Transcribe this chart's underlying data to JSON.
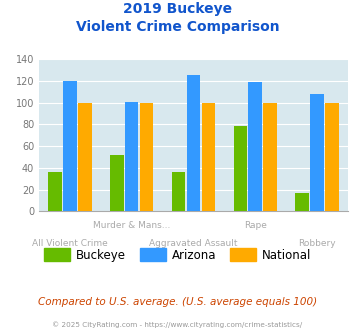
{
  "title_line1": "2019 Buckeye",
  "title_line2": "Violent Crime Comparison",
  "buckeye_values": [
    36,
    52,
    36,
    79,
    17
  ],
  "arizona_values": [
    120,
    101,
    126,
    119,
    108
  ],
  "national_values": [
    100,
    100,
    100,
    100,
    100
  ],
  "buckeye_color": "#66bb00",
  "arizona_color": "#3399ff",
  "national_color": "#ffaa00",
  "background_color": "#d8e8ee",
  "ylim": [
    0,
    140
  ],
  "yticks": [
    0,
    20,
    40,
    60,
    80,
    100,
    120,
    140
  ],
  "top_xlabels": {
    "1": "Murder & Mans...",
    "3": "Rape"
  },
  "bottom_xlabels": {
    "0": "All Violent Crime",
    "2": "Aggravated Assault",
    "4": "Robbery"
  },
  "footer_text": "Compared to U.S. average. (U.S. average equals 100)",
  "copyright_text": "© 2025 CityRating.com - https://www.cityrating.com/crime-statistics/",
  "title_color": "#1155cc",
  "footer_color": "#cc4400",
  "copyright_color": "#999999",
  "legend_labels": [
    "Buckeye",
    "Arizona",
    "National"
  ],
  "label_color": "#aaaaaa"
}
